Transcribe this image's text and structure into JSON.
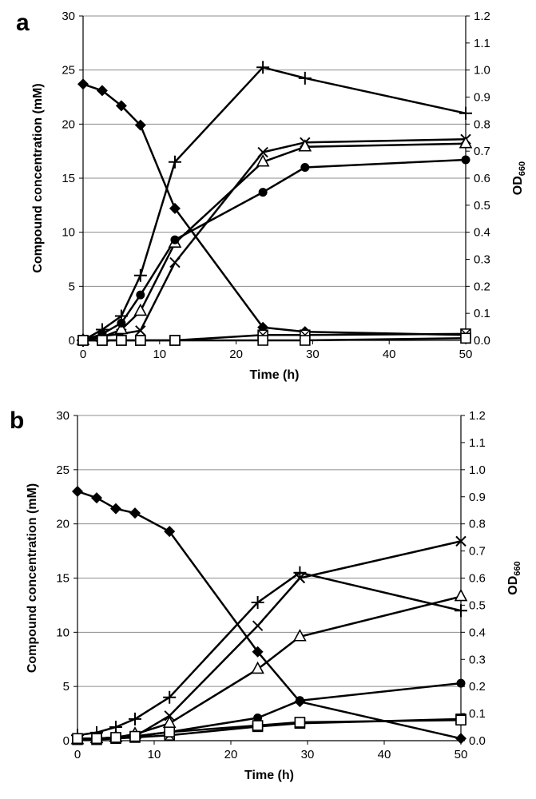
{
  "chart_data": [
    {
      "type": "line",
      "panel_label": "a",
      "xlabel": "Time (h)",
      "ylabel": "Compound concentration (mM)",
      "y2label_main": "OD",
      "y2label_sub": "660",
      "xlim": [
        0,
        50
      ],
      "ylim": [
        0,
        30
      ],
      "y2lim": [
        0,
        1.2
      ],
      "grid": "horizontal",
      "x_ticks": [
        "0",
        "10",
        "20",
        "30",
        "40",
        "50"
      ],
      "y_ticks": [
        "0",
        "5",
        "10",
        "15",
        "20",
        "25",
        "30"
      ],
      "y2_ticks": [
        "0.0",
        "0.1",
        "0.2",
        "0.3",
        "0.4",
        "0.5",
        "0.6",
        "0.7",
        "0.8",
        "0.9",
        "1.0",
        "1.1",
        "1.2"
      ],
      "x": [
        0,
        2.5,
        5,
        7.5,
        12,
        23.5,
        29,
        50
      ],
      "series": [
        {
          "name": "filled diamond",
          "marker": "diamond",
          "axis": "left",
          "values": [
            23.7,
            23.1,
            21.7,
            19.9,
            12.2,
            1.2,
            0.8,
            0.5
          ]
        },
        {
          "name": "plus (OD660)",
          "marker": "plus",
          "axis": "right",
          "values": [
            0.0,
            0.04,
            0.09,
            0.24,
            0.66,
            1.01,
            0.97,
            0.84
          ]
        },
        {
          "name": "cross",
          "marker": "cross",
          "axis": "left",
          "values": [
            0.0,
            0.4,
            0.6,
            0.9,
            7.2,
            17.4,
            18.3,
            18.6
          ]
        },
        {
          "name": "open triangle",
          "marker": "triangle",
          "axis": "left",
          "values": [
            0.0,
            0.3,
            1.0,
            2.7,
            9.0,
            16.5,
            17.9,
            18.2
          ]
        },
        {
          "name": "filled circle",
          "marker": "circle",
          "axis": "left",
          "values": [
            0.0,
            0.6,
            1.6,
            4.2,
            9.3,
            13.7,
            16.0,
            16.7
          ]
        },
        {
          "name": "crossed square",
          "marker": "xsquare",
          "axis": "left",
          "values": [
            0.0,
            0.0,
            0.0,
            0.0,
            0.0,
            0.5,
            0.5,
            0.6
          ]
        },
        {
          "name": "open square",
          "marker": "square",
          "axis": "left",
          "values": [
            0.0,
            0.0,
            0.0,
            0.0,
            0.0,
            0.0,
            0.0,
            0.2
          ]
        }
      ]
    },
    {
      "type": "line",
      "panel_label": "b",
      "xlabel": "Time (h)",
      "ylabel": "Compound concentration (mM)",
      "y2label_main": "OD",
      "y2label_sub": "660",
      "xlim": [
        0,
        50
      ],
      "ylim": [
        0,
        30
      ],
      "y2lim": [
        0,
        1.2
      ],
      "grid": "horizontal",
      "x_ticks": [
        "0",
        "10",
        "20",
        "30",
        "40",
        "50"
      ],
      "y_ticks": [
        "0",
        "5",
        "10",
        "15",
        "20",
        "25",
        "30"
      ],
      "y2_ticks": [
        "0.0",
        "0.1",
        "0.2",
        "0.3",
        "0.4",
        "0.5",
        "0.6",
        "0.7",
        "0.8",
        "0.9",
        "1.0",
        "1.1",
        "1.2"
      ],
      "x": [
        0,
        2.5,
        5,
        7.5,
        12,
        23.5,
        29,
        50
      ],
      "series": [
        {
          "name": "filled diamond",
          "marker": "diamond",
          "axis": "left",
          "values": [
            23.0,
            22.4,
            21.4,
            21.0,
            19.3,
            8.2,
            3.6,
            0.2
          ]
        },
        {
          "name": "plus (OD660)",
          "marker": "plus",
          "axis": "right",
          "values": [
            0.02,
            0.03,
            0.05,
            0.08,
            0.16,
            0.51,
            0.62,
            0.48
          ]
        },
        {
          "name": "cross",
          "marker": "cross",
          "axis": "left",
          "values": [
            0.1,
            0.2,
            0.3,
            0.4,
            2.3,
            10.6,
            15.0,
            18.4
          ]
        },
        {
          "name": "open triangle",
          "marker": "triangle",
          "axis": "left",
          "values": [
            0.1,
            0.2,
            0.3,
            0.6,
            1.6,
            6.6,
            9.6,
            13.3
          ]
        },
        {
          "name": "filled circle",
          "marker": "circle",
          "axis": "left",
          "values": [
            0.1,
            0.2,
            0.3,
            0.4,
            0.8,
            2.1,
            3.7,
            5.3
          ]
        },
        {
          "name": "crossed square",
          "marker": "xsquare",
          "axis": "left",
          "values": [
            0.1,
            0.1,
            0.2,
            0.3,
            0.5,
            1.3,
            1.6,
            2.0
          ]
        },
        {
          "name": "open square",
          "marker": "square",
          "axis": "left",
          "values": [
            0.2,
            0.2,
            0.3,
            0.4,
            0.8,
            1.4,
            1.7,
            1.9
          ]
        }
      ]
    }
  ]
}
